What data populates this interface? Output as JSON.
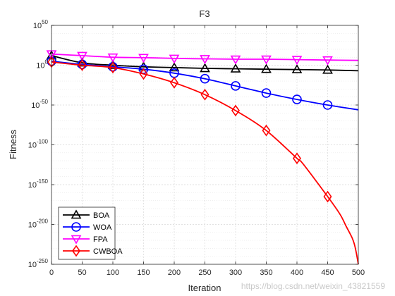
{
  "watermark": "https://blog.csdn.net/weixin_43821559",
  "chart_data": {
    "type": "line",
    "title": "F3",
    "xlabel": "Iteration",
    "ylabel": "Fitness",
    "y_scale": "log",
    "xlim": [
      0,
      500
    ],
    "ylim_exponent": [
      -250,
      50
    ],
    "x_ticks": [
      "0",
      "50",
      "100",
      "150",
      "200",
      "250",
      "300",
      "350",
      "400",
      "450",
      "500"
    ],
    "y_tick_exponents": [
      50,
      0,
      -50,
      -100,
      -150,
      -200,
      -250
    ],
    "y_tick_base": "10",
    "grid": true,
    "minor_grid": true,
    "legend_position": "bottom-left",
    "marker_x": [
      0,
      50,
      100,
      150,
      200,
      250,
      300,
      350,
      400,
      450
    ],
    "series": [
      {
        "name": "BOA",
        "color": "#000000",
        "marker": "triangle-up",
        "x": [
          0,
          50,
          100,
          150,
          200,
          250,
          300,
          350,
          400,
          450,
          500
        ],
        "log10_y": [
          12,
          3,
          0,
          -2,
          -3,
          -4,
          -4.5,
          -5,
          -5.5,
          -6,
          -7
        ]
      },
      {
        "name": "WOA",
        "color": "#0000ff",
        "marker": "circle",
        "x": [
          0,
          50,
          100,
          150,
          200,
          250,
          300,
          350,
          400,
          450,
          500
        ],
        "log10_y": [
          5,
          1,
          -2,
          -5,
          -10,
          -17,
          -26,
          -35,
          -43,
          -50,
          -56
        ]
      },
      {
        "name": "FPA",
        "color": "#ff00ff",
        "marker": "triangle-down",
        "x": [
          0,
          50,
          100,
          150,
          200,
          250,
          300,
          350,
          400,
          450,
          500
        ],
        "log10_y": [
          14,
          12,
          10,
          9.5,
          8.5,
          8,
          7.5,
          7.5,
          7,
          6.5,
          6
        ]
      },
      {
        "name": "CWBOA",
        "color": "#ff0000",
        "marker": "diamond",
        "x": [
          0,
          50,
          100,
          150,
          200,
          250,
          300,
          350,
          400,
          410,
          450,
          470,
          480,
          490,
          495,
          500
        ],
        "log10_y": [
          4,
          0,
          -3,
          -11,
          -22,
          -37,
          -57,
          -82,
          -117,
          -124,
          -165,
          -187,
          -202,
          -217,
          -229,
          -250
        ]
      }
    ]
  }
}
